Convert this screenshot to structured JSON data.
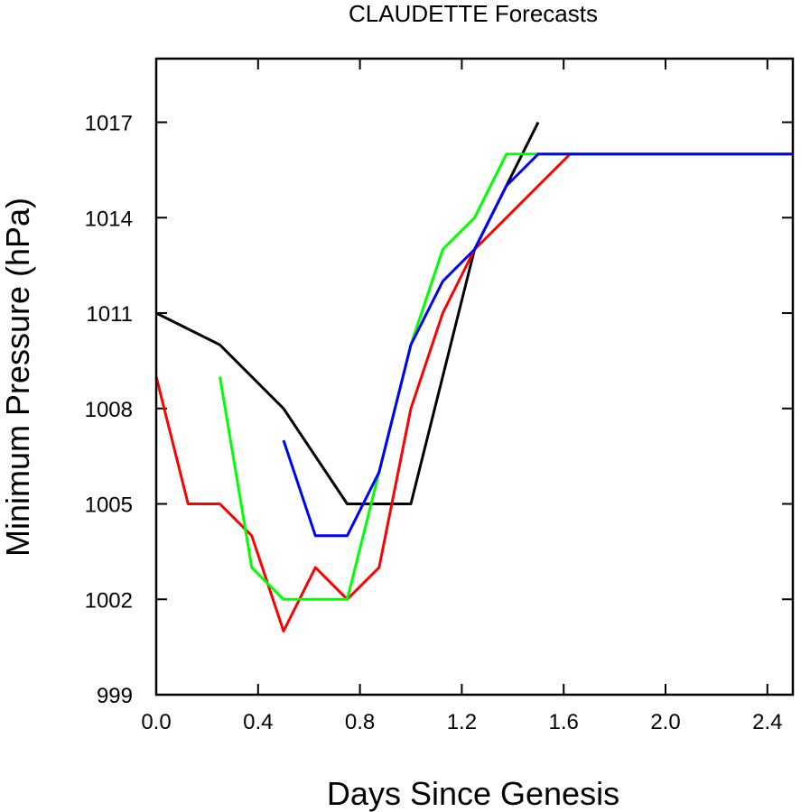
{
  "chart_data": {
    "type": "line",
    "title": "CLAUDETTE Forecasts",
    "xlabel": "Days Since Genesis",
    "ylabel": "Minimum Pressure (hPa)",
    "xlim": [
      0.0,
      2.5
    ],
    "ylim": [
      999,
      1019
    ],
    "x_ticks": [
      "0.0",
      "0.4",
      "0.8",
      "1.2",
      "1.6",
      "2.0",
      "2.4"
    ],
    "y_ticks": [
      "999",
      "1002",
      "1005",
      "1008",
      "1011",
      "1014",
      "1017"
    ],
    "grid": false,
    "legend": "none",
    "series": [
      {
        "color": "#000000",
        "points": [
          [
            0.0,
            1011
          ],
          [
            0.25,
            1010
          ],
          [
            0.5,
            1008
          ],
          [
            0.75,
            1005
          ],
          [
            1.0,
            1005
          ],
          [
            1.25,
            1013
          ],
          [
            1.5,
            1017
          ]
        ]
      },
      {
        "color": "#ff0000",
        "points": [
          [
            0.0,
            1009
          ],
          [
            0.125,
            1005
          ],
          [
            0.25,
            1005
          ],
          [
            0.375,
            1004
          ],
          [
            0.5,
            1001
          ],
          [
            0.625,
            1003
          ],
          [
            0.75,
            1002
          ],
          [
            0.875,
            1003
          ],
          [
            1.0,
            1008
          ],
          [
            1.125,
            1011
          ],
          [
            1.25,
            1013
          ],
          [
            1.375,
            1014
          ],
          [
            1.5,
            1015
          ],
          [
            1.625,
            1016
          ],
          [
            2.5,
            1016
          ]
        ]
      },
      {
        "color": "#00ff00",
        "points": [
          [
            0.25,
            1009
          ],
          [
            0.375,
            1003
          ],
          [
            0.5,
            1002
          ],
          [
            0.625,
            1002
          ],
          [
            0.75,
            1002
          ],
          [
            0.875,
            1006
          ],
          [
            1.0,
            1010
          ],
          [
            1.125,
            1013
          ],
          [
            1.25,
            1014
          ],
          [
            1.375,
            1016
          ],
          [
            1.5,
            1016
          ],
          [
            2.5,
            1016
          ]
        ]
      },
      {
        "color": "#0000ff",
        "points": [
          [
            0.5,
            1007
          ],
          [
            0.625,
            1004
          ],
          [
            0.75,
            1004
          ],
          [
            0.875,
            1006
          ],
          [
            1.0,
            1010
          ],
          [
            1.125,
            1012
          ],
          [
            1.25,
            1013
          ],
          [
            1.375,
            1015
          ],
          [
            1.5,
            1016
          ],
          [
            2.5,
            1016
          ]
        ]
      }
    ]
  }
}
